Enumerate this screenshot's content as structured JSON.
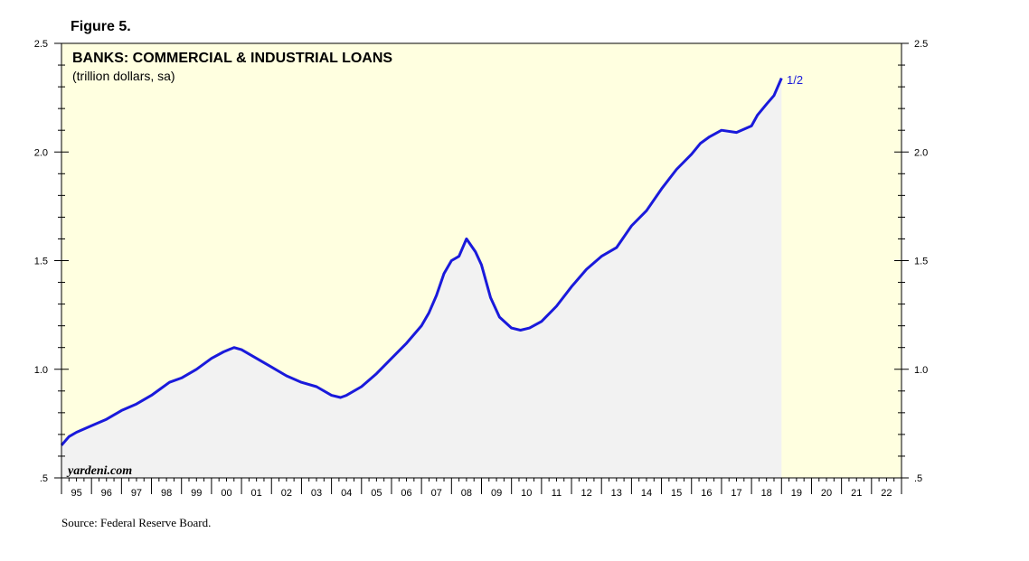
{
  "figure_label": "Figure 5.",
  "source": "Source: Federal Reserve Board.",
  "watermark": "yardeni.com",
  "colors": {
    "plot_bg": "#ffffe0",
    "area_fill": "#f2f2f2",
    "line": "#1a1adb",
    "axis": "#000000"
  },
  "chart_data": {
    "type": "line",
    "title": "BANKS: COMMERCIAL & INDUSTRIAL LOANS",
    "subtitle": "(trillion dollars, sa)",
    "annotation": "1/2",
    "x_range": [
      1995,
      2023
    ],
    "ylim": [
      0.5,
      2.5
    ],
    "y_ticks": [
      0.5,
      1.0,
      1.5,
      2.0,
      2.5
    ],
    "y_tick_labels": [
      ".5",
      "1.0",
      "1.5",
      "2.0",
      "2.5"
    ],
    "x_labels": [
      "95",
      "96",
      "97",
      "98",
      "99",
      "00",
      "01",
      "02",
      "03",
      "04",
      "05",
      "06",
      "07",
      "08",
      "09",
      "10",
      "11",
      "12",
      "13",
      "14",
      "15",
      "16",
      "17",
      "18",
      "19",
      "20",
      "21",
      "22"
    ],
    "legend": "none",
    "series": [
      {
        "x": [
          1995.0,
          1995.25,
          1995.5,
          1996.0,
          1996.5,
          1997.0,
          1997.5,
          1998.0,
          1998.3,
          1998.6,
          1999.0,
          1999.5,
          2000.0,
          2000.4,
          2000.75,
          2001.0,
          2001.5,
          2002.0,
          2002.5,
          2003.0,
          2003.5,
          2004.0,
          2004.3,
          2004.5,
          2005.0,
          2005.5,
          2006.0,
          2006.5,
          2007.0,
          2007.25,
          2007.5,
          2007.75,
          2008.0,
          2008.25,
          2008.5,
          2008.8,
          2009.0,
          2009.3,
          2009.6,
          2010.0,
          2010.3,
          2010.6,
          2011.0,
          2011.5,
          2012.0,
          2012.5,
          2013.0,
          2013.5,
          2014.0,
          2014.5,
          2015.0,
          2015.5,
          2016.0,
          2016.3,
          2016.6,
          2017.0,
          2017.5,
          2018.0,
          2018.2,
          2018.5,
          2018.75,
          2019.0
        ],
        "y": [
          0.65,
          0.69,
          0.71,
          0.74,
          0.77,
          0.81,
          0.84,
          0.88,
          0.91,
          0.94,
          0.96,
          1.0,
          1.05,
          1.08,
          1.1,
          1.09,
          1.05,
          1.01,
          0.97,
          0.94,
          0.92,
          0.88,
          0.87,
          0.88,
          0.92,
          0.98,
          1.05,
          1.12,
          1.2,
          1.26,
          1.34,
          1.44,
          1.5,
          1.52,
          1.6,
          1.54,
          1.48,
          1.33,
          1.24,
          1.19,
          1.18,
          1.19,
          1.22,
          1.29,
          1.38,
          1.46,
          1.52,
          1.56,
          1.66,
          1.73,
          1.83,
          1.92,
          1.99,
          2.04,
          2.07,
          2.1,
          2.09,
          2.12,
          2.17,
          2.22,
          2.26,
          2.34
        ]
      }
    ]
  }
}
